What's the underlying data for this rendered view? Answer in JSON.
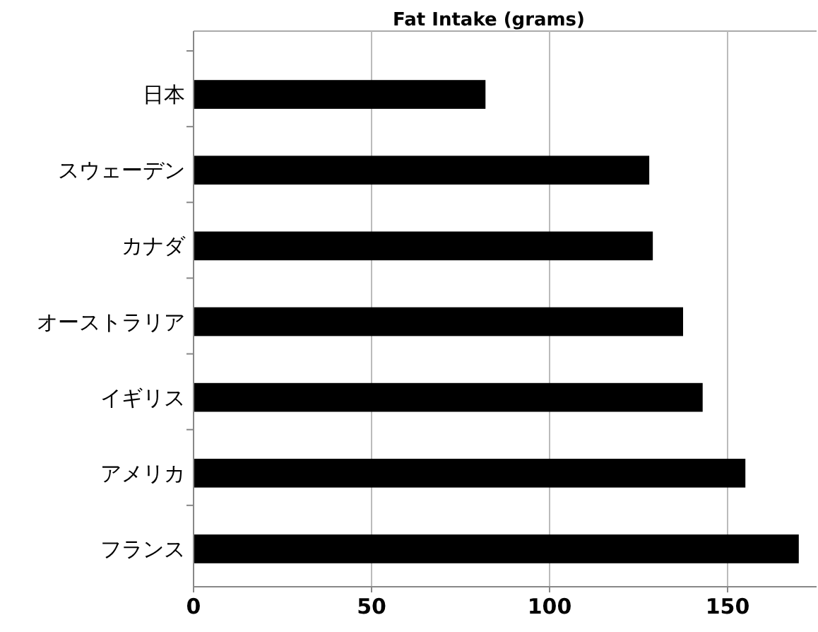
{
  "chart_data": {
    "type": "bar",
    "orientation": "horizontal",
    "title": "Fat Intake (grams)",
    "categories": [
      "日本",
      "スウェーデン",
      "カナダ",
      "オーストラリア",
      "イギリス",
      "アメリカ",
      "フランス"
    ],
    "values": [
      82,
      128,
      129,
      137.5,
      143,
      155,
      170
    ],
    "color": "#000000",
    "xlim": [
      0,
      175
    ],
    "xticks": [
      0,
      50,
      100,
      150
    ],
    "grid": "x"
  }
}
